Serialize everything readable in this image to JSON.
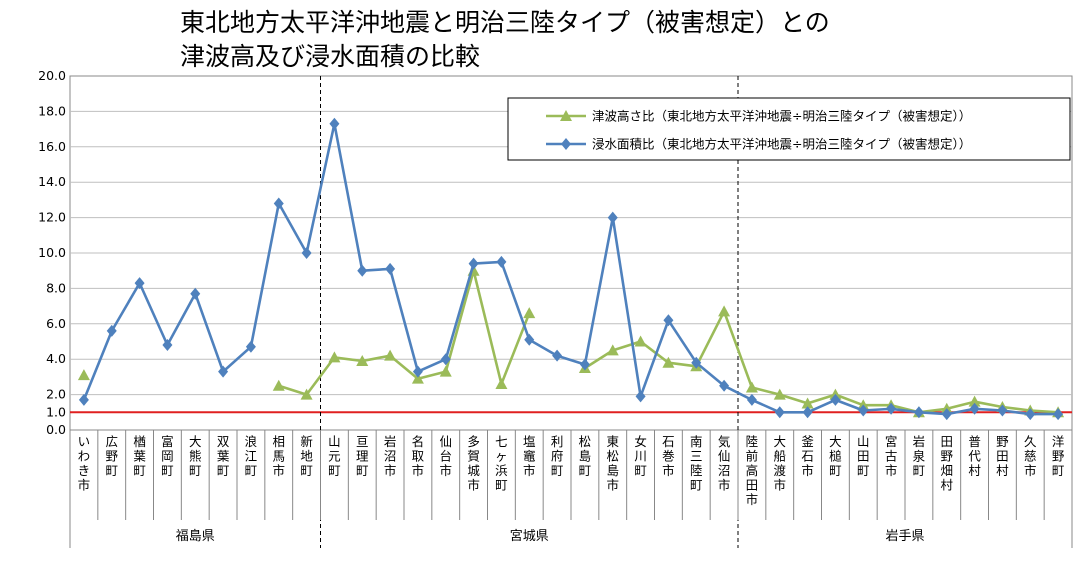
{
  "chart_data": {
    "type": "line",
    "title_lines": [
      "東北地方太平洋沖地震と明治三陸タイプ（被害想定）との",
      "津波高及び浸水面積の比較"
    ],
    "xlabel": "",
    "ylabel": "",
    "y_ticks": [
      "20.0",
      "18.0",
      "16.0",
      "14.0",
      "12.0",
      "10.0",
      "8.0",
      "6.0",
      "4.0",
      "2.0",
      "1.0",
      "0.0"
    ],
    "y_tick_values": [
      20,
      18,
      16,
      14,
      12,
      10,
      8,
      6,
      4,
      2,
      1,
      0
    ],
    "ylim": [
      0,
      20
    ],
    "grid": true,
    "reference_line": {
      "value": 1.0,
      "color": "#e02020"
    },
    "categories": [
      "いわき市",
      "広野町",
      "楢葉町",
      "富岡町",
      "大熊町",
      "双葉町",
      "浪江町",
      "相馬市",
      "新地町",
      "山元町",
      "亘理町",
      "岩沼市",
      "名取市",
      "仙台市",
      "多賀城市",
      "七ヶ浜町",
      "塩竈市",
      "利府町",
      "松島町",
      "東松島市",
      "女川町",
      "石巻市",
      "南三陸町",
      "気仙沼市",
      "陸前高田市",
      "大船渡市",
      "釜石市",
      "大槌町",
      "山田町",
      "宮古市",
      "岩泉町",
      "田野畑村",
      "普代村",
      "野田村",
      "久慈市",
      "洋野町"
    ],
    "groups": [
      {
        "label": "福島県",
        "start": 0,
        "end": 8
      },
      {
        "label": "宮城県",
        "start": 9,
        "end": 23
      },
      {
        "label": "岩手県",
        "start": 24,
        "end": 35
      }
    ],
    "legend_position": "top-right",
    "series": [
      {
        "name": "津波高さ比（東北地方太平洋沖地震÷明治三陸タイプ（被害想定））",
        "color": "#9bbb59",
        "marker": "triangle",
        "values": [
          3.1,
          null,
          null,
          null,
          null,
          null,
          null,
          2.5,
          2.0,
          4.1,
          3.9,
          4.2,
          2.9,
          3.3,
          9.0,
          2.6,
          6.6,
          null,
          3.5,
          4.5,
          5.0,
          3.8,
          3.6,
          6.7,
          2.4,
          2.0,
          1.5,
          2.0,
          1.4,
          1.4,
          1.0,
          1.2,
          1.6,
          1.3,
          1.1,
          1.0
        ]
      },
      {
        "name": "浸水面積比（東北地方太平洋沖地震÷明治三陸タイプ（被害想定））",
        "color": "#4f81bd",
        "marker": "diamond",
        "values": [
          1.7,
          5.6,
          8.3,
          4.8,
          7.7,
          3.3,
          4.7,
          12.8,
          10.0,
          17.3,
          9.0,
          9.1,
          3.3,
          4.0,
          9.4,
          9.5,
          5.1,
          4.2,
          3.7,
          12.0,
          1.9,
          6.2,
          3.8,
          2.5,
          1.7,
          1.0,
          1.0,
          1.7,
          1.1,
          1.2,
          1.0,
          0.9,
          1.2,
          1.1,
          0.9,
          0.9
        ]
      }
    ]
  }
}
